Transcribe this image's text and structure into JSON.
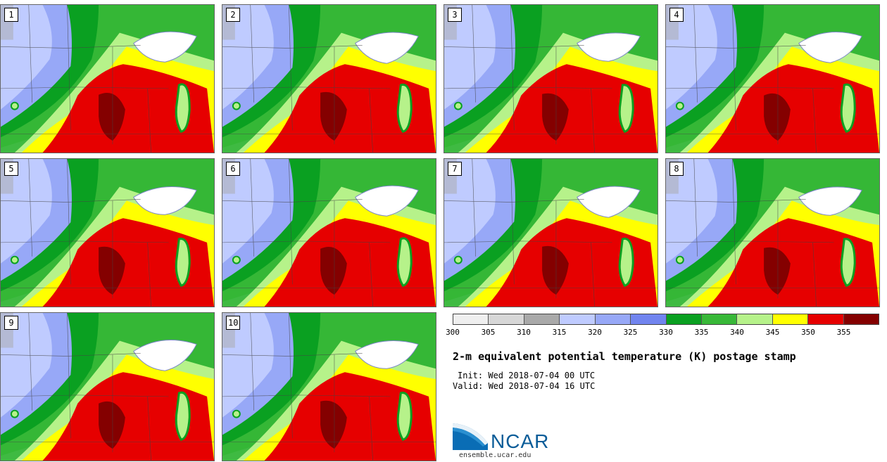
{
  "title": "2-m equivalent potential temperature (K) postage stamp",
  "init_text": "Init: Wed 2018-07-04 00 UTC",
  "valid_text": "Valid: Wed 2018-07-04 16 UTC",
  "logo_text": "NCAR",
  "site_text": "ensemble.ucar.edu",
  "members": [
    "1",
    "2",
    "3",
    "4",
    "5",
    "6",
    "7",
    "8",
    "9",
    "10"
  ],
  "colorbar": {
    "ticks": [
      "300",
      "305",
      "310",
      "315",
      "320",
      "325",
      "330",
      "335",
      "340",
      "345",
      "350",
      "355"
    ],
    "colors": [
      "#efefef",
      "#d7d7d7",
      "#a9a9a9",
      "#bfcbff",
      "#97a8f7",
      "#7184ef",
      "#0aa021",
      "#38b838",
      "#b6f28a",
      "#ffff00",
      "#e60000",
      "#840000"
    ]
  }
}
